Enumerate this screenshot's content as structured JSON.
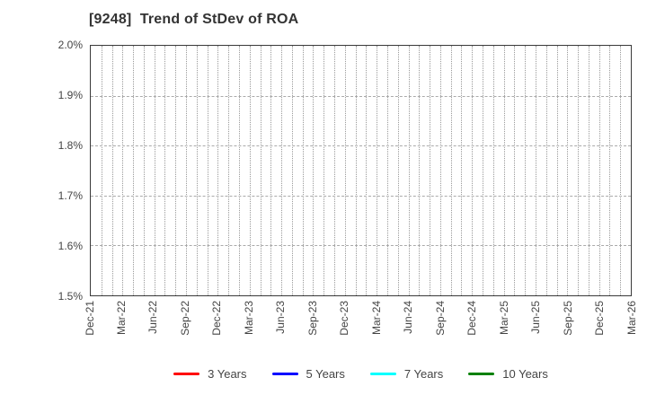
{
  "title": "[9248]  Trend of StDev of ROA",
  "chart_data": {
    "type": "line",
    "title": "[9248]  Trend of StDev of ROA",
    "xlabel": "",
    "ylabel": "",
    "ylim": [
      1.5,
      2.0
    ],
    "y_unit": "percent",
    "y_ticks": [
      "2.0%",
      "1.9%",
      "1.8%",
      "1.7%",
      "1.6%",
      "1.5%"
    ],
    "x_ticks": [
      "Dec-21",
      "Mar-22",
      "Jun-22",
      "Sep-22",
      "Dec-22",
      "Mar-23",
      "Jun-23",
      "Sep-23",
      "Dec-23",
      "Mar-24",
      "Jun-24",
      "Sep-24",
      "Dec-24",
      "Mar-25",
      "Jun-25",
      "Sep-25",
      "Dec-25",
      "Mar-26"
    ],
    "months_per_tick": 3,
    "total_months": 51,
    "grid": true,
    "grid_vertical_interval": "monthly",
    "legend_position": "bottom",
    "series": [
      {
        "name": "3 Years",
        "color": "#ff0000",
        "values": []
      },
      {
        "name": "5 Years",
        "color": "#0000ff",
        "values": []
      },
      {
        "name": "7 Years",
        "color": "#00ffff",
        "values": []
      },
      {
        "name": "10 Years",
        "color": "#008000",
        "values": []
      }
    ]
  },
  "colors": {
    "background": "#ffffff",
    "plot_border": "#3a3a3a",
    "grid": "#9a9a9a",
    "text": "#444444",
    "title_text": "#333333"
  }
}
